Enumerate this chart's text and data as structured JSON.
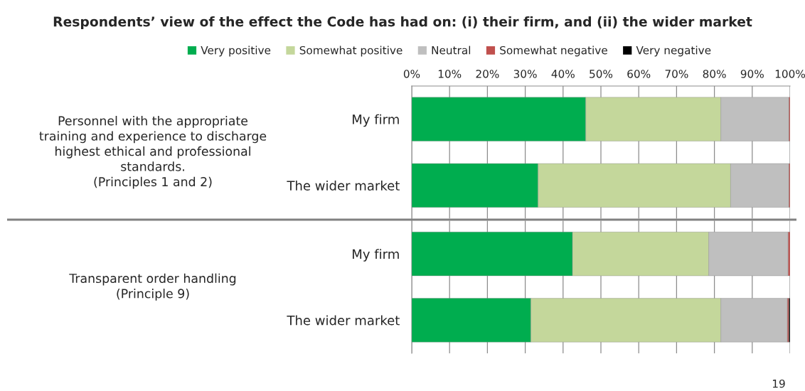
{
  "chart_data": [
    {
      "type": "bar",
      "orientation": "horizontal",
      "stacked": true,
      "title": "Respondents’ view of the effect the Code has had on: (i) their firm, and (ii) the wider market",
      "categories": [
        "My firm",
        "The wider market"
      ],
      "series": [
        {
          "name": "Very positive",
          "color": "#00ad4f",
          "values": [
            46,
            33.4
          ]
        },
        {
          "name": "Somewhat positive",
          "color": "#c4d79b",
          "values": [
            35.7,
            50.9
          ]
        },
        {
          "name": "Neutral",
          "color": "#bfbfbf",
          "values": [
            18,
            15.4
          ]
        },
        {
          "name": "Somewhat negative",
          "color": "#c0504d",
          "values": [
            0.3,
            0.3
          ]
        }
      ],
      "xlim": [
        0,
        100
      ],
      "xticks": [
        {
          "value": 0,
          "label": "0%"
        },
        {
          "value": 10,
          "label": "10%"
        },
        {
          "value": 20,
          "label": "20%"
        },
        {
          "value": 30,
          "label": "30%"
        },
        {
          "value": 40,
          "label": "40%"
        },
        {
          "value": 50,
          "label": "50%"
        },
        {
          "value": 60,
          "label": "60%"
        },
        {
          "value": 70,
          "label": "70%"
        },
        {
          "value": 80,
          "label": "80%"
        },
        {
          "value": 90,
          "label": "90%"
        },
        {
          "value": 100,
          "label": "100%"
        }
      ],
      "grid": "x",
      "legend": "top",
      "annotations": [
        "Personnel with the appropriate\ntraining and experience to discharge\nhighest ethical and professional\nstandards.\n(Principles 1 and 2)"
      ]
    },
    {
      "type": "bar",
      "orientation": "horizontal",
      "stacked": true,
      "categories": [
        "My firm",
        "The wider market"
      ],
      "series": [
        {
          "color": "#00ad4f",
          "values": [
            42.5,
            31.5
          ]
        },
        {
          "color": "#c4d79b",
          "values": [
            36,
            50.2
          ]
        },
        {
          "color": "#bfbfbf",
          "values": [
            21,
            17.6
          ]
        },
        {
          "color": "#c0504d",
          "values": [
            0.5,
            0.4
          ]
        },
        {
          "name": "Very negative",
          "color": "#000000",
          "values": [
            null,
            0.3
          ]
        }
      ],
      "xlim": [
        0,
        100
      ],
      "xticks": [
        0,
        10,
        20,
        30,
        40,
        50,
        60,
        70,
        80,
        90,
        100
      ],
      "tick_labels": "y",
      "grid": "x",
      "annotations": [
        "Transparent order handling\n(Principle 9)",
        "19"
      ]
    }
  ]
}
